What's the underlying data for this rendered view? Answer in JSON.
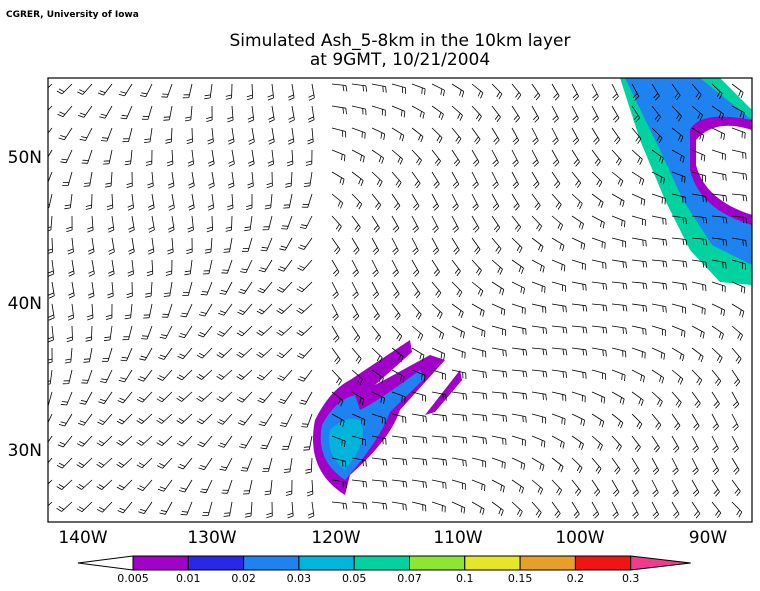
{
  "header": {
    "credit": "CGRER, University of Iowa",
    "title_line1": "Simulated Ash_5-8km in the 10km layer",
    "title_line2": "at 9GMT, 10/21/2004"
  },
  "latitude_labels": [
    "50N",
    "40N",
    "30N"
  ],
  "longitude_labels": [
    "140W",
    "130W",
    "120W",
    "110W",
    "100W",
    "90W"
  ],
  "colorbar": {
    "labels": [
      "0.005",
      "0.01",
      "0.02",
      "0.03",
      "0.05",
      "0.07",
      "0.1",
      "0.15",
      "0.2",
      "0.3"
    ],
    "colors": [
      "#ffffff",
      "#a000c8",
      "#2828e6",
      "#1e82f0",
      "#00b4dc",
      "#00d2a0",
      "#8ce632",
      "#e6e628",
      "#e6a028",
      "#f01414",
      "#f03c8c"
    ]
  }
}
